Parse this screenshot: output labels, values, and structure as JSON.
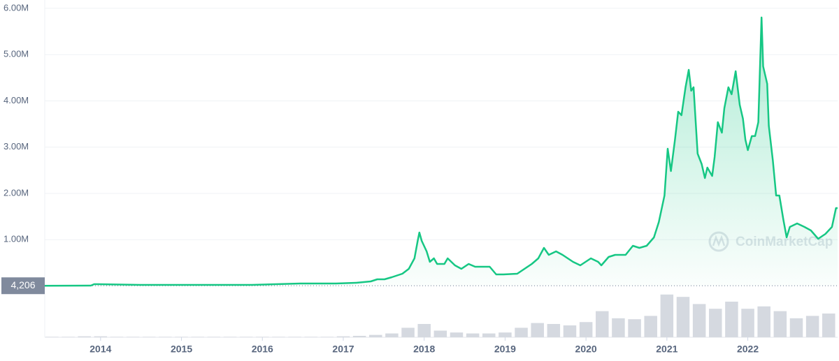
{
  "chart_data": {
    "type": "line",
    "color": "#16c784",
    "x": [
      2013.31,
      2013.88,
      2013.92,
      2013.97,
      2014.49,
      2015.35,
      2015.87,
      2016.47,
      2016.91,
      2017.16,
      2017.34,
      2017.42,
      2017.51,
      2017.6,
      2017.73,
      2017.81,
      2017.88,
      2017.92,
      2017.94,
      2017.97,
      2018.03,
      2018.07,
      2018.12,
      2018.16,
      2018.25,
      2018.29,
      2018.38,
      2018.46,
      2018.55,
      2018.63,
      2018.81,
      2018.89,
      2018.98,
      2019.15,
      2019.33,
      2019.41,
      2019.48,
      2019.54,
      2019.63,
      2019.71,
      2019.84,
      2019.93,
      2020.06,
      2020.15,
      2020.19,
      2020.28,
      2020.36,
      2020.49,
      2020.58,
      2020.66,
      2020.75,
      2020.84,
      2020.9,
      2020.97,
      2021.01,
      2021.05,
      2021.1,
      2021.14,
      2021.18,
      2021.23,
      2021.27,
      2021.3,
      2021.33,
      2021.38,
      2021.43,
      2021.47,
      2021.5,
      2021.56,
      2021.59,
      2021.63,
      2021.68,
      2021.71,
      2021.76,
      2021.8,
      2021.85,
      2021.9,
      2021.94,
      2021.97,
      2022.0,
      2022.05,
      2022.09,
      2022.13,
      2022.17,
      2022.19,
      2022.24,
      2022.26,
      2022.31,
      2022.35,
      2022.39,
      2022.44,
      2022.48,
      2022.52,
      2022.61,
      2022.7,
      2022.78,
      2022.87,
      2022.96,
      2023.04,
      2023.09,
      2023.11
    ],
    "values": [
      4206,
      7500,
      38000,
      38000,
      23000,
      23000,
      23000,
      53000,
      53000,
      68000,
      98000,
      143000,
      143000,
      189000,
      264000,
      370000,
      596000,
      974000,
      1155000,
      974000,
      747000,
      521000,
      596000,
      475000,
      475000,
      596000,
      445000,
      370000,
      475000,
      415000,
      415000,
      249000,
      249000,
      264000,
      475000,
      596000,
      823000,
      672000,
      747000,
      672000,
      521000,
      445000,
      596000,
      521000,
      445000,
      626000,
      672000,
      672000,
      868000,
      823000,
      868000,
      1049000,
      1381000,
      1955000,
      2966000,
      2483000,
      3162000,
      3766000,
      3690000,
      4294000,
      4671000,
      4219000,
      4294000,
      2860000,
      2634000,
      2332000,
      2558000,
      2377000,
      2785000,
      3539000,
      3313000,
      3841000,
      4294000,
      4143000,
      4641000,
      3917000,
      3615000,
      3162000,
      2936000,
      3238000,
      3238000,
      3539000,
      5803000,
      4747000,
      4369000,
      3464000,
      2709000,
      1955000,
      1955000,
      1426000,
      1049000,
      1275000,
      1351000,
      1275000,
      1200000,
      1019000,
      1125000,
      1275000,
      1683000,
      1683000
    ],
    "xlim": [
      2013.31,
      2023.11
    ],
    "xticks": [
      2014,
      2015,
      2016,
      2017,
      2018,
      2019,
      2020,
      2021,
      2022
    ],
    "ylim": [
      0,
      6180000
    ],
    "yticks": [
      {
        "value": 1000000,
        "label": "1.00M"
      },
      {
        "value": 2000000,
        "label": "2.00M"
      },
      {
        "value": 3000000,
        "label": "3.00M"
      },
      {
        "value": 4000000,
        "label": "4.00M"
      },
      {
        "value": 5000000,
        "label": "5.00M"
      },
      {
        "value": 6000000,
        "label": "6.00M"
      }
    ],
    "grid": true,
    "reference": {
      "value": 4206,
      "label": "4,206"
    },
    "watermark": "CoinMarketCap",
    "volume": {
      "color": "#d5d9e0",
      "ylim": [
        0,
        100
      ],
      "x": [
        2013.4,
        2013.6,
        2013.8,
        2014.0,
        2014.2,
        2014.4,
        2014.6,
        2014.8,
        2015.0,
        2015.2,
        2015.4,
        2015.6,
        2015.8,
        2016.0,
        2016.2,
        2016.4,
        2016.6,
        2016.8,
        2017.0,
        2017.2,
        2017.4,
        2017.6,
        2017.8,
        2018.0,
        2018.2,
        2018.4,
        2018.6,
        2018.8,
        2019.0,
        2019.2,
        2019.4,
        2019.6,
        2019.8,
        2020.0,
        2020.2,
        2020.4,
        2020.6,
        2020.8,
        2021.0,
        2021.2,
        2021.4,
        2021.6,
        2021.8,
        2022.0,
        2022.2,
        2022.4,
        2022.6,
        2022.8,
        2023.0
      ],
      "values": [
        1,
        1,
        2,
        2,
        1,
        1,
        1,
        1,
        1,
        1,
        1,
        1,
        1,
        1,
        1,
        1,
        1,
        1,
        2,
        3,
        5,
        8,
        20,
        28,
        14,
        10,
        8,
        8,
        10,
        20,
        30,
        28,
        25,
        32,
        55,
        40,
        38,
        45,
        90,
        85,
        70,
        60,
        75,
        60,
        65,
        55,
        40,
        45,
        50
      ]
    }
  }
}
